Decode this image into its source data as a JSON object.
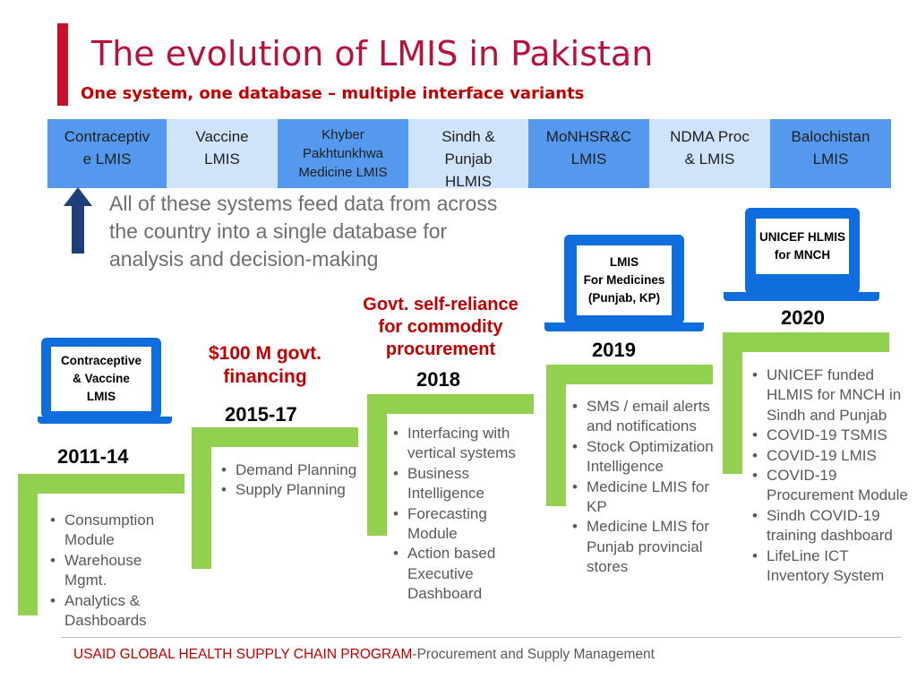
{
  "header": {
    "title": "The evolution of LMIS in Pakistan",
    "subtitle": "One system, one database – multiple interface variants"
  },
  "systems": [
    {
      "lines": [
        "Contraceptiv",
        "e LMIS"
      ]
    },
    {
      "lines": [
        "Vaccine",
        "LMIS"
      ]
    },
    {
      "lines": [
        "Khyber",
        "Pakhtunkhwa",
        "Medicine LMIS"
      ]
    },
    {
      "lines": [
        "Sindh &",
        "Punjab",
        "HLMIS"
      ]
    },
    {
      "lines": [
        "MoNHSR&C",
        "LMIS"
      ]
    },
    {
      "lines": [
        "NDMA Proc",
        "& LMIS"
      ]
    },
    {
      "lines": [
        "Balochistan",
        "LMIS"
      ]
    }
  ],
  "feed_text": "All of these systems feed data from across the country into a single database for analysis and decision-making",
  "timeline": [
    {
      "year": "2011-14",
      "laptop_lines": [
        "Contraceptive",
        "& Vaccine",
        "LMIS"
      ],
      "goal_lines": [],
      "bullets": [
        "Consumption Module",
        "Warehouse Mgmt.",
        "Analytics & Dashboards"
      ]
    },
    {
      "year": "2015-17",
      "laptop_lines": [],
      "goal_lines": [
        "$100 M govt.",
        "financing"
      ],
      "bullets": [
        "Demand Planning",
        "Supply Planning"
      ]
    },
    {
      "year": "2018",
      "laptop_lines": [],
      "goal_lines": [
        "Govt. self-reliance",
        "for commodity",
        "procurement"
      ],
      "bullets": [
        "Interfacing with vertical systems",
        "Business Intelligence",
        "Forecasting Module",
        "Action based Executive Dashboard"
      ]
    },
    {
      "year": "2019",
      "laptop_lines": [
        "LMIS",
        "For Medicines",
        "(Punjab, KP)"
      ],
      "goal_lines": [],
      "bullets": [
        "SMS / email alerts and notifications",
        "Stock Optimization Intelligence",
        "Medicine LMIS for KP",
        "Medicine LMIS for Punjab provincial stores"
      ]
    },
    {
      "year": "2020",
      "laptop_lines": [
        "UNICEF HLMIS",
        "for MNCH"
      ],
      "goal_lines": [],
      "bullets": [
        "UNICEF funded HLMIS for MNCH in Sindh and Punjab",
        "COVID-19 TSMIS",
        "COVID-19 LMIS",
        "COVID-19 Procurement Module",
        "Sindh COVID-19 training dashboard",
        "LifeLine ICT Inventory System"
      ]
    }
  ],
  "footer": {
    "program": "USAID GLOBAL HEALTH SUPPLY CHAIN PROGRAM",
    "rest": "-Procurement and Supply Management"
  },
  "colors": {
    "title_red": "#b5123c",
    "goal_red": "#c00000",
    "step_green": "#92d050",
    "laptop_blue": "#0f6dde",
    "system_dark": "#5599ee",
    "system_light": "#cfe3fb",
    "arrow_navy": "#1f3f7a"
  }
}
